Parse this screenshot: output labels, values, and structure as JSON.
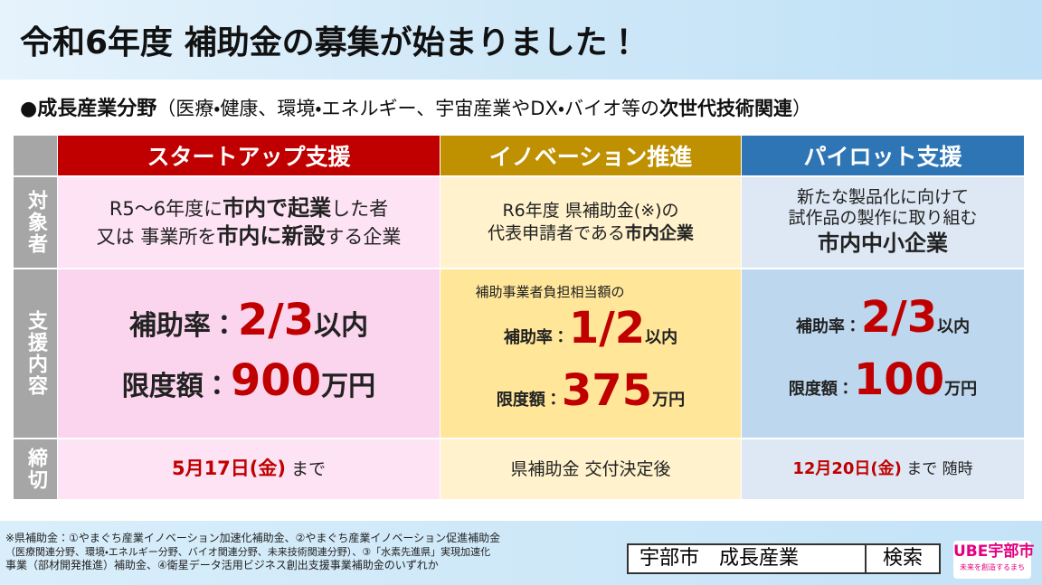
{
  "header": {
    "title": "令和6年度 補助金の募集が始まりました！"
  },
  "section": {
    "heading": "●成長産業分野",
    "note": [
      "（医療・健康、環境・エネルギー、宇宙産業やDX・バイオ等の",
      "次世代技術関連",
      "）"
    ]
  },
  "table": {
    "columns": [
      "スタートアップ支援",
      "イノベーション推進",
      "パイロット支援"
    ],
    "row_headers": [
      "対象者",
      "支援内容",
      "締切"
    ],
    "rows": [
      [
        [
          [
            "R5～6年度に",
            "市内で起業",
            "した者"
          ],
          [
            "又は 事業所を",
            "市内に新設",
            "する企業"
          ]
        ],
        [
          [
            "R6年度 県補助金(※)の"
          ],
          [
            "代表申請者である",
            "市内企業"
          ]
        ],
        [
          [
            "新たな製品化に向けて"
          ],
          [
            "試作品の製作に取り組む"
          ],
          [
            "市内中小企業"
          ]
        ]
      ],
      [
        [
          [
            "補助率：",
            "2/3",
            "以内"
          ],
          [
            "限度額：",
            "900",
            "万円"
          ]
        ],
        [
          [
            "補助事業者負担相当額の"
          ],
          [
            "補助率：",
            "1/2",
            "以内"
          ],
          [
            "限度額：",
            "375",
            "万円"
          ]
        ],
        [
          [
            "補助率：",
            "2/3",
            "以内"
          ],
          [
            "限度額：",
            "100",
            "万円"
          ]
        ]
      ],
      [
        [
          [
            "5月17日(金)",
            "まで"
          ]
        ],
        [
          [
            "県補助金 交付決定後"
          ]
        ],
        [
          [
            "12月20日(金)",
            "まで 随時"
          ]
        ]
      ]
    ]
  },
  "footer": {
    "note": [
      "※県補助金：①やまぐち産業イノベーション加速化補助金、②やまぐち産業イノベーション促進補助金",
      "（医療関連分野、環境・エネルギー分野、バイオ関連分野、未来技術関連分野）、③「水素先進県」実現加速化",
      "事業（部材開発推進）補助金、④衛星データ活用ビジネス創出支援事業補助金のいずれか"
    ],
    "search_query": "宇部市　成長産業",
    "search_button": "検索",
    "logo": "UBE宇部市",
    "logo_tagline": "未来を創造するまち"
  }
}
